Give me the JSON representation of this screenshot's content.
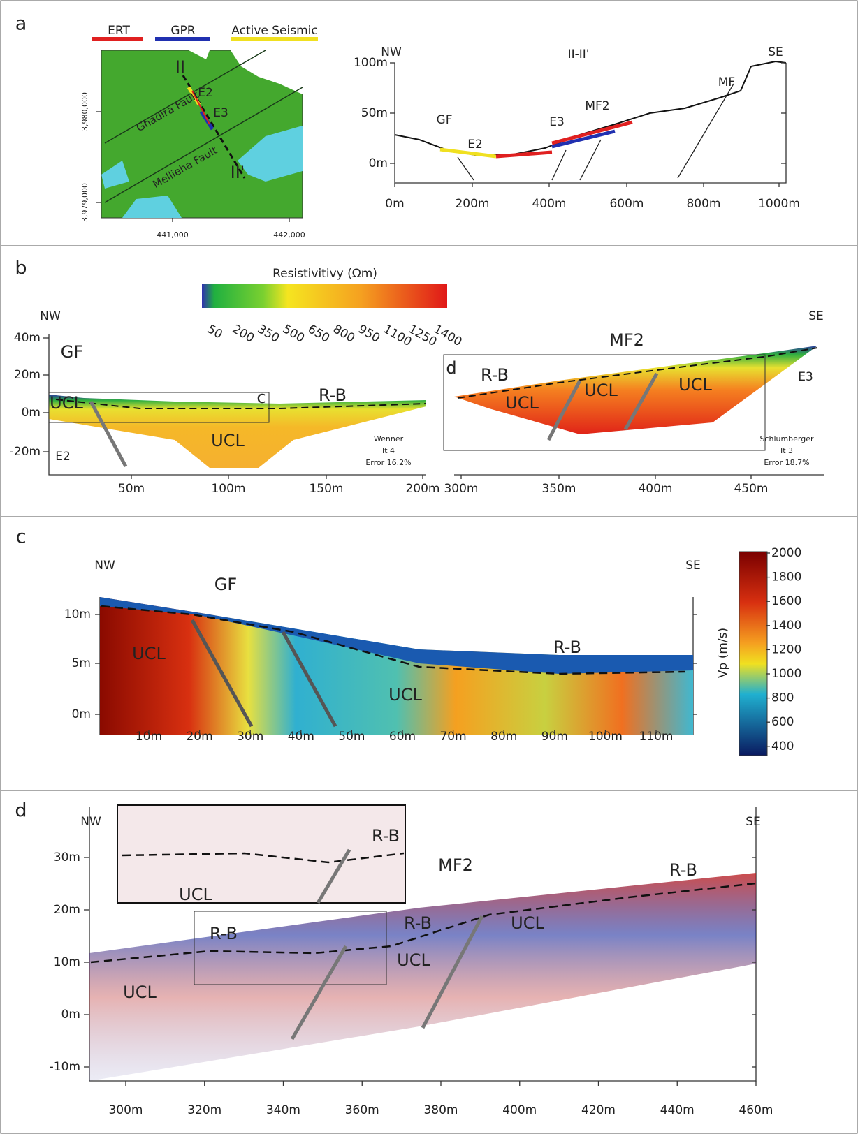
{
  "panel_a": {
    "label": "a",
    "legend": [
      "ERT",
      "GPR",
      "Active Seismic"
    ],
    "map": {
      "faults": [
        "Ghadira Fault",
        "Mellieha Fault"
      ],
      "profile_start": "II",
      "profile_end": "II'",
      "lines": [
        "E2",
        "E3"
      ],
      "y_ticks": [
        "3,980,000",
        "3,979,000"
      ],
      "x_ticks": [
        "441,000",
        "442,000"
      ]
    },
    "profile": {
      "title": "II-II'",
      "left": "NW",
      "right": "SE",
      "labels": [
        "GF",
        "E2",
        "E3",
        "MF2",
        "MF"
      ],
      "y_ticks": [
        "100m",
        "50m",
        "0m"
      ],
      "x_ticks": [
        "0m",
        "200m",
        "400m",
        "600m",
        "800m",
        "1000m"
      ]
    }
  },
  "panel_b": {
    "label": "b",
    "colorbar_title": "Resistivitivy (Ωm)",
    "colorbar_ticks": [
      "50",
      "200",
      "350",
      "500",
      "650",
      "800",
      "950",
      "1100",
      "1250",
      "1400"
    ],
    "left": "NW",
    "right": "SE",
    "y_ticks": [
      "40m",
      "20m",
      "0m",
      "-20m"
    ],
    "x_ticks": [
      "50m",
      "100m",
      "150m",
      "200m",
      "300m",
      "350m",
      "400m",
      "450m"
    ],
    "left_labels": [
      "GF",
      "UCL",
      "R-B",
      "UCL",
      "c",
      "E2"
    ],
    "right_labels": [
      "MF2",
      "d",
      "R-B",
      "UCL",
      "UCL",
      "UCL",
      "E3"
    ],
    "left_info": [
      "Wenner",
      "It 4",
      "Error 16.2%"
    ],
    "right_info": [
      "Schlumberger",
      "It 3",
      "Error 18.7%"
    ]
  },
  "panel_c": {
    "label": "c",
    "left": "NW",
    "right": "SE",
    "labels": [
      "GF",
      "UCL",
      "R-B",
      "UCL"
    ],
    "y_ticks": [
      "10m",
      "5m",
      "0m"
    ],
    "x_ticks": [
      "10m",
      "20m",
      "30m",
      "40m",
      "50m",
      "60m",
      "70m",
      "80m",
      "90m",
      "100m",
      "110m"
    ],
    "colorbar_title": "Vp (m/s)",
    "colorbar_ticks": [
      "2000",
      "1800",
      "1600",
      "1400",
      "1200",
      "1000",
      "800",
      "600",
      "400"
    ]
  },
  "panel_d": {
    "label": "d",
    "left": "NW",
    "right": "SE",
    "labels": [
      "MF2",
      "R-B",
      "UCL",
      "R-B",
      "R-B",
      "UCL",
      "UCL",
      "R-B",
      "UCL"
    ],
    "y_ticks": [
      "30m",
      "20m",
      "10m",
      "0m",
      "-10m"
    ],
    "x_ticks": [
      "300m",
      "320m",
      "340m",
      "360m",
      "380m",
      "400m",
      "420m",
      "440m",
      "460m"
    ]
  }
}
